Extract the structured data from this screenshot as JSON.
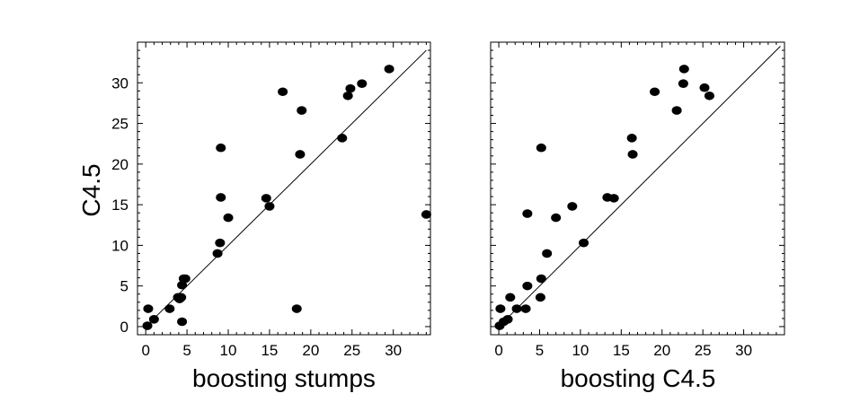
{
  "chart_data": [
    {
      "type": "scatter",
      "title": "",
      "xlabel": "boosting stumps",
      "ylabel": "C4.5",
      "xlim": [
        -1,
        34.5
      ],
      "ylim": [
        -1,
        35
      ],
      "xticks": [
        0,
        5,
        10,
        15,
        20,
        25,
        30
      ],
      "yticks": [
        0,
        5,
        10,
        15,
        20,
        25,
        30
      ],
      "grid": false,
      "reference_line": "y = x",
      "series": [
        {
          "x": [
            0.2,
            0.3,
            1.0,
            2.9,
            3.9,
            4.1,
            4.3,
            4.4,
            4.6,
            4.8,
            4.4,
            8.7,
            9.0,
            9.1,
            9.1,
            10.0,
            14.6,
            15.0,
            16.6,
            18.3,
            18.7,
            18.9,
            23.8,
            24.5,
            24.8,
            26.2,
            29.5,
            34.0
          ],
          "y": [
            0.1,
            2.2,
            0.9,
            2.2,
            3.6,
            3.4,
            3.6,
            5.1,
            5.9,
            5.9,
            0.6,
            9.0,
            10.3,
            15.9,
            22.0,
            13.4,
            15.8,
            14.8,
            28.9,
            2.2,
            21.2,
            26.6,
            23.2,
            28.4,
            29.3,
            29.9,
            31.7,
            13.8
          ]
        }
      ]
    },
    {
      "type": "scatter",
      "title": "",
      "xlabel": "boosting C4.5",
      "ylabel": "",
      "xlim": [
        -1,
        35
      ],
      "ylim": [
        -1,
        35
      ],
      "xticks": [
        0,
        5,
        10,
        15,
        20,
        25,
        30
      ],
      "yticks": [],
      "grid": false,
      "reference_line": "y = x",
      "series": [
        {
          "x": [
            0.1,
            0.2,
            0.6,
            1.1,
            1.4,
            2.2,
            3.3,
            3.5,
            3.5,
            5.1,
            5.2,
            5.2,
            5.9,
            7.0,
            9.0,
            10.4,
            13.3,
            14.1,
            16.3,
            16.4,
            19.1,
            21.8,
            22.6,
            22.7,
            25.2,
            25.8
          ],
          "y": [
            0.1,
            2.2,
            0.6,
            0.9,
            3.6,
            2.2,
            2.2,
            5.0,
            13.9,
            3.6,
            5.9,
            22.0,
            9.0,
            13.4,
            14.8,
            10.3,
            15.9,
            15.8,
            23.2,
            21.2,
            28.9,
            26.6,
            29.9,
            31.7,
            29.4,
            28.4
          ]
        }
      ]
    }
  ]
}
